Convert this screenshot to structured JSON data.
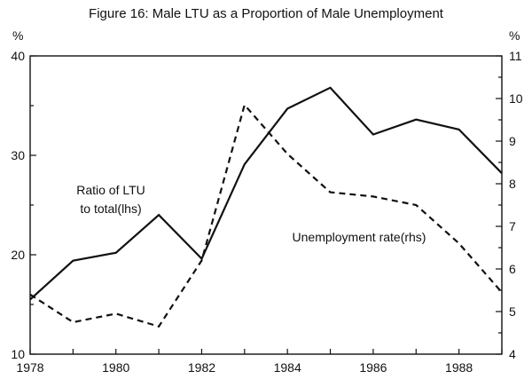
{
  "chart_data": {
    "type": "line",
    "title": "Figure 16: Male LTU as a Proportion of Male Unemployment",
    "left_unit": "%",
    "right_unit": "%",
    "x_ticks": [
      "1978",
      "1980",
      "1982",
      "1984",
      "1986",
      "1988"
    ],
    "xlim": [
      1978,
      1989
    ],
    "left_axis": {
      "ylim": [
        10,
        40
      ],
      "ticks": [
        "10",
        "20",
        "30",
        "40"
      ]
    },
    "right_axis": {
      "ylim": [
        4,
        11
      ],
      "ticks": [
        "4",
        "5",
        "6",
        "7",
        "8",
        "9",
        "10",
        "11"
      ]
    },
    "grid": false,
    "series": [
      {
        "name": "Ratio of LTU to total(lhs)",
        "label_lines": [
          "Ratio of LTU",
          "to total(lhs)"
        ],
        "axis": "left",
        "style": "solid",
        "x": [
          1978,
          1979,
          1980,
          1981,
          1982,
          1983,
          1984,
          1985,
          1986,
          1987,
          1988,
          1989
        ],
        "values": [
          15.5,
          19.4,
          20.2,
          24.0,
          19.6,
          29.1,
          34.7,
          36.8,
          32.1,
          33.6,
          32.6,
          28.2
        ]
      },
      {
        "name": "Unemployment rate(rhs)",
        "label_lines": [
          "Unemployment rate(rhs)"
        ],
        "axis": "right",
        "style": "dashed",
        "x": [
          1978,
          1979,
          1980,
          1981,
          1982,
          1983,
          1984,
          1985,
          1986,
          1987,
          1988,
          1989
        ],
        "values": [
          5.4,
          4.75,
          4.95,
          4.65,
          6.2,
          9.85,
          8.7,
          7.8,
          7.7,
          7.5,
          6.6,
          5.45
        ]
      }
    ]
  }
}
